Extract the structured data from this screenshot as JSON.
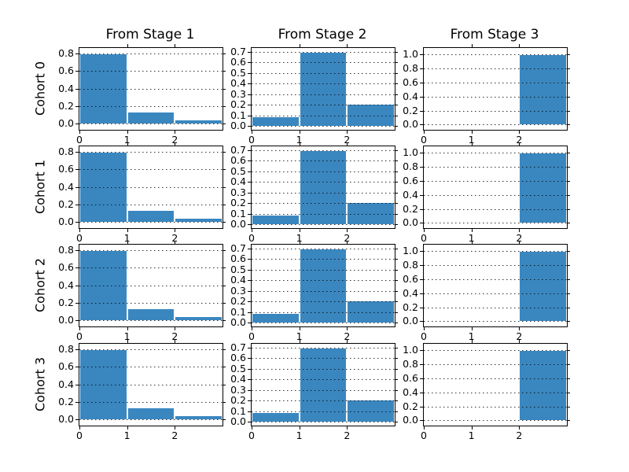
{
  "figure": {
    "background": "#ffffff",
    "bar_color": "#3a87c0",
    "bar_edge_color": "#ffffff",
    "text_color": "#000000",
    "gridline_color": "#000000"
  },
  "chart_data": {
    "type": "bar",
    "title": "",
    "grid_layout": "4 rows x 3 cols of histograms",
    "col_titles": [
      "From Stage 1",
      "From Stage 2",
      "From Stage 3"
    ],
    "row_labels": [
      "Cohort 0",
      "Cohort 1",
      "Cohort 2",
      "Cohort 3"
    ],
    "x_bins": [
      0,
      1,
      2
    ],
    "bin_width": 1,
    "xlim": [
      0,
      3
    ],
    "xtick_labels": [
      "0",
      "1",
      "2"
    ],
    "grid": "dotted horizontal gridlines at every y tick",
    "columns": [
      {
        "title": "From Stage 1",
        "ylim": [
          -0.07,
          0.865
        ],
        "yticks": [
          0.0,
          0.2,
          0.4,
          0.6,
          0.8
        ],
        "ytick_labels": [
          "0.0",
          "0.2",
          "0.4",
          "0.6",
          "0.8"
        ]
      },
      {
        "title": "From Stage 2",
        "ylim": [
          -0.035,
          0.735
        ],
        "yticks": [
          0.0,
          0.1,
          0.2,
          0.3,
          0.4,
          0.5,
          0.6,
          0.7
        ],
        "ytick_labels": [
          "0.0",
          "0.1",
          "0.2",
          "0.3",
          "0.4",
          "0.5",
          "0.6",
          "0.7"
        ]
      },
      {
        "title": "From Stage 3",
        "ylim": [
          -0.075,
          1.095
        ],
        "yticks": [
          0.0,
          0.2,
          0.4,
          0.6,
          0.8,
          1.0
        ],
        "ytick_labels": [
          "0.0",
          "0.2",
          "0.4",
          "0.6",
          "0.8",
          "1.0"
        ]
      }
    ],
    "subplots": [
      {
        "row": "Cohort 0",
        "col": "From Stage 1",
        "values": [
          0.8,
          0.14,
          0.045
        ]
      },
      {
        "row": "Cohort 0",
        "col": "From Stage 2",
        "values": [
          0.092,
          0.7,
          0.21
        ]
      },
      {
        "row": "Cohort 0",
        "col": "From Stage 3",
        "values": [
          0.0,
          0.0,
          1.0
        ]
      },
      {
        "row": "Cohort 1",
        "col": "From Stage 1",
        "values": [
          0.8,
          0.14,
          0.045
        ]
      },
      {
        "row": "Cohort 1",
        "col": "From Stage 2",
        "values": [
          0.092,
          0.7,
          0.21
        ]
      },
      {
        "row": "Cohort 1",
        "col": "From Stage 3",
        "values": [
          0.0,
          0.0,
          1.0
        ]
      },
      {
        "row": "Cohort 2",
        "col": "From Stage 1",
        "values": [
          0.8,
          0.14,
          0.045
        ]
      },
      {
        "row": "Cohort 2",
        "col": "From Stage 2",
        "values": [
          0.092,
          0.7,
          0.21
        ]
      },
      {
        "row": "Cohort 2",
        "col": "From Stage 3",
        "values": [
          0.0,
          0.0,
          1.0
        ]
      },
      {
        "row": "Cohort 3",
        "col": "From Stage 1",
        "values": [
          0.8,
          0.14,
          0.045
        ]
      },
      {
        "row": "Cohort 3",
        "col": "From Stage 2",
        "values": [
          0.092,
          0.7,
          0.21
        ]
      },
      {
        "row": "Cohort 3",
        "col": "From Stage 3",
        "values": [
          0.0,
          0.0,
          1.0
        ]
      }
    ]
  }
}
